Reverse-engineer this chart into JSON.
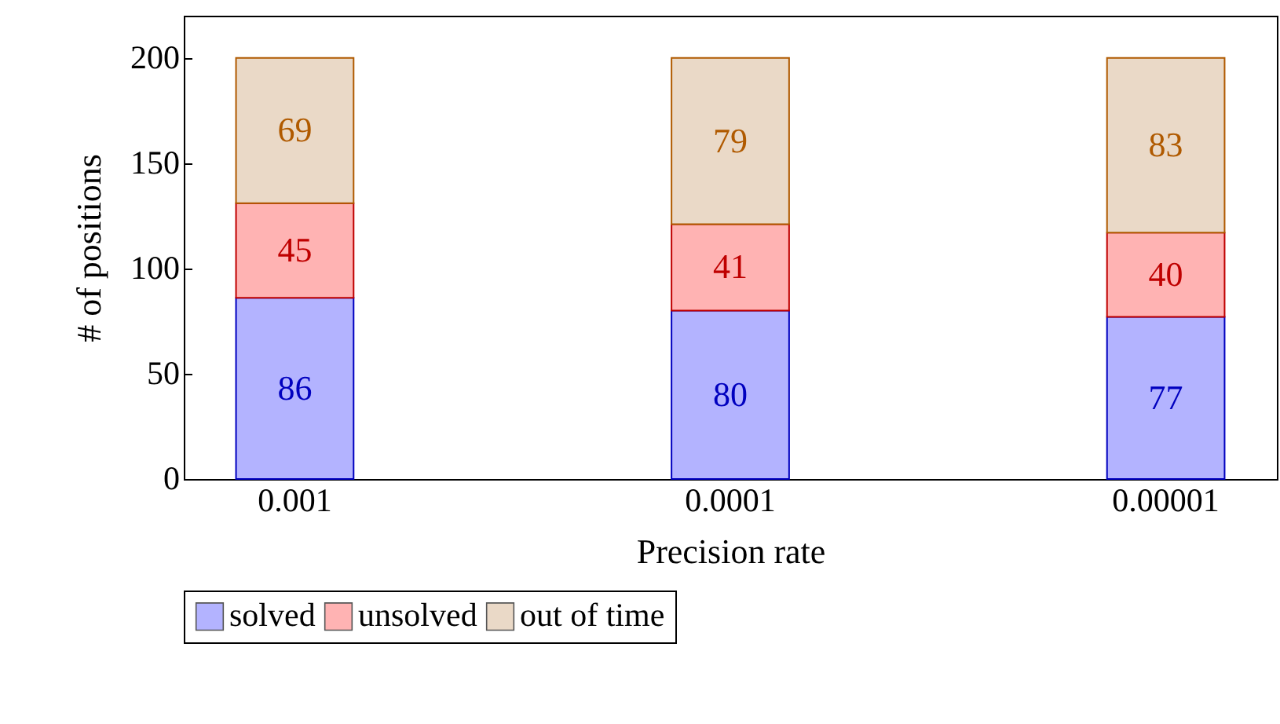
{
  "chart_data": {
    "type": "bar",
    "stacked": true,
    "xlabel": "Precision rate",
    "ylabel": "# of positions",
    "categories": [
      "0.001",
      "0.0001",
      "0.00001"
    ],
    "series": [
      {
        "name": "solved",
        "color": "#b3b3ff",
        "values": [
          86,
          80,
          77
        ]
      },
      {
        "name": "unsolved",
        "color": "#ffb3b3",
        "values": [
          45,
          41,
          40
        ]
      },
      {
        "name": "out of time",
        "color": "#ead9c7",
        "values": [
          69,
          79,
          83
        ]
      }
    ],
    "ylim": [
      0,
      220
    ],
    "yticks": [
      0,
      50,
      100,
      150,
      200
    ],
    "grid": false,
    "legend": "bottom",
    "data_labels": true
  }
}
